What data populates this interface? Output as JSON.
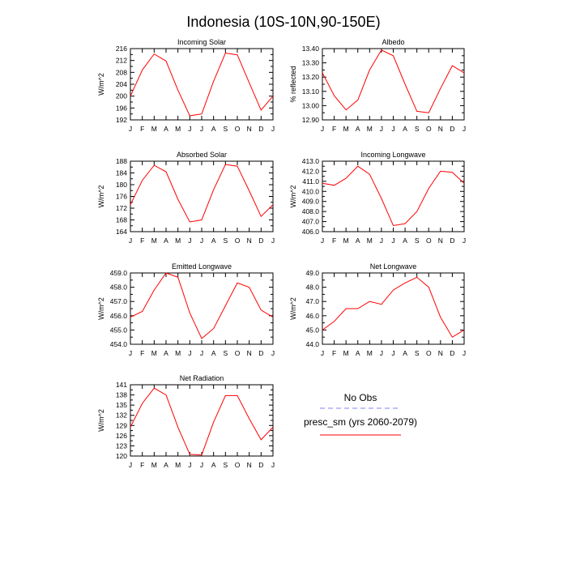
{
  "page": {
    "title": "Indonesia (10S-10N,90-150E)"
  },
  "legend": {
    "obs_label": "No Obs",
    "obs_color": "#8080ff",
    "model_label": "presc_sm (yrs 2060-2079)",
    "model_color": "#ff0000"
  },
  "chart_data": [
    {
      "type": "line",
      "title": "Incoming Solar",
      "ylabel": "W/m^2",
      "x": [
        "J",
        "F",
        "M",
        "A",
        "M",
        "J",
        "J",
        "A",
        "S",
        "O",
        "N",
        "D",
        "J"
      ],
      "ylim": [
        192,
        216
      ],
      "yticks": [
        "192",
        "196",
        "200",
        "204",
        "208",
        "212",
        "216"
      ],
      "series": [
        {
          "values": [
            200.0,
            208.8,
            214.2,
            211.8,
            202.0,
            193.4,
            194.0,
            205.0,
            214.5,
            213.9,
            204.5,
            195.3,
            200.0
          ]
        }
      ]
    },
    {
      "type": "line",
      "title": "Albedo",
      "ylabel": "% reflected",
      "x": [
        "J",
        "F",
        "M",
        "A",
        "M",
        "J",
        "J",
        "A",
        "S",
        "O",
        "N",
        "D",
        "J"
      ],
      "ylim": [
        12.9,
        13.4
      ],
      "yticks": [
        "12.90",
        "13.00",
        "13.10",
        "13.20",
        "13.30",
        "13.40"
      ],
      "series": [
        {
          "values": [
            13.23,
            13.07,
            12.97,
            13.04,
            13.25,
            13.39,
            13.35,
            13.15,
            12.96,
            12.95,
            13.12,
            13.28,
            13.23
          ]
        }
      ]
    },
    {
      "type": "line",
      "title": "Absorbed Solar",
      "ylabel": "W/m^2",
      "x": [
        "J",
        "F",
        "M",
        "A",
        "M",
        "J",
        "J",
        "A",
        "S",
        "O",
        "N",
        "D",
        "J"
      ],
      "ylim": [
        164,
        188
      ],
      "yticks": [
        "164",
        "168",
        "172",
        "176",
        "180",
        "184",
        "188"
      ],
      "series": [
        {
          "values": [
            173.2,
            181.5,
            186.6,
            184.4,
            175.0,
            167.3,
            168.0,
            178.3,
            186.9,
            186.3,
            177.9,
            169.2,
            173.2
          ]
        }
      ]
    },
    {
      "type": "line",
      "title": "Incoming Longwave",
      "ylabel": "W/m^2",
      "x": [
        "J",
        "F",
        "M",
        "A",
        "M",
        "J",
        "J",
        "A",
        "S",
        "O",
        "N",
        "D",
        "J"
      ],
      "ylim": [
        406,
        413
      ],
      "yticks": [
        "406.0",
        "407.0",
        "408.0",
        "409.0",
        "410.0",
        "411.0",
        "412.0",
        "413.0"
      ],
      "series": [
        {
          "values": [
            410.8,
            410.6,
            411.3,
            412.5,
            411.7,
            409.3,
            406.6,
            406.8,
            408.0,
            410.3,
            412.0,
            411.9,
            410.8
          ]
        }
      ]
    },
    {
      "type": "line",
      "title": "Emitted Longwave",
      "ylabel": "W/m^2",
      "x": [
        "J",
        "F",
        "M",
        "A",
        "M",
        "J",
        "J",
        "A",
        "S",
        "O",
        "N",
        "D",
        "J"
      ],
      "ylim": [
        454,
        459
      ],
      "yticks": [
        "454.0",
        "455.0",
        "456.0",
        "457.0",
        "458.0",
        "459.0"
      ],
      "series": [
        {
          "values": [
            455.9,
            456.3,
            457.8,
            459.0,
            458.7,
            456.2,
            454.4,
            455.1,
            456.7,
            458.3,
            458.0,
            456.4,
            455.9
          ]
        }
      ]
    },
    {
      "type": "line",
      "title": "Net Longwave",
      "ylabel": "W/m^2",
      "x": [
        "J",
        "F",
        "M",
        "A",
        "M",
        "J",
        "J",
        "A",
        "S",
        "O",
        "N",
        "D",
        "J"
      ],
      "ylim": [
        44,
        49
      ],
      "yticks": [
        "44.0",
        "45.0",
        "46.0",
        "47.0",
        "48.0",
        "49.0"
      ],
      "series": [
        {
          "values": [
            45.0,
            45.6,
            46.5,
            46.5,
            47.0,
            46.8,
            47.8,
            48.3,
            48.7,
            48.0,
            45.9,
            44.5,
            45.0
          ]
        }
      ]
    },
    {
      "type": "line",
      "title": "Net Radiation",
      "ylabel": "W/m^2",
      "x": [
        "J",
        "F",
        "M",
        "A",
        "M",
        "J",
        "J",
        "A",
        "S",
        "O",
        "N",
        "D",
        "J"
      ],
      "ylim": [
        120,
        141
      ],
      "yticks": [
        "120",
        "123",
        "126",
        "129",
        "132",
        "135",
        "138",
        "141"
      ],
      "series": [
        {
          "values": [
            128.5,
            135.5,
            140.0,
            138.0,
            128.5,
            120.5,
            120.3,
            130.0,
            137.8,
            137.8,
            131.0,
            124.8,
            128.5
          ]
        }
      ]
    }
  ]
}
